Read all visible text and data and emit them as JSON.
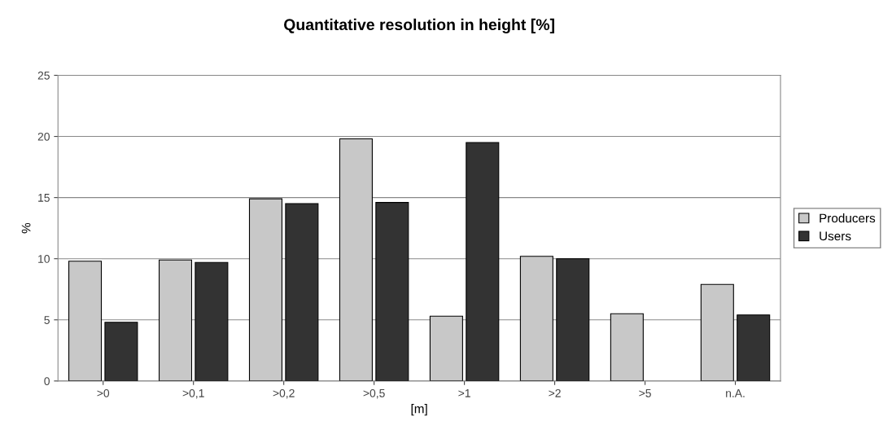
{
  "chart_data": {
    "type": "bar",
    "title": "Quantitative resolution in height [%]",
    "xlabel": "[m]",
    "ylabel": "%",
    "categories": [
      ">0",
      ">0,1",
      ">0,2",
      ">0,5",
      ">1",
      ">2",
      ">5",
      "n.A."
    ],
    "series": [
      {
        "name": "Producers",
        "color": "#c8c8c8",
        "values": [
          9.8,
          9.9,
          14.9,
          19.8,
          5.3,
          10.2,
          5.5,
          7.9
        ]
      },
      {
        "name": "Users",
        "color": "#333333",
        "values": [
          4.8,
          9.7,
          14.5,
          14.6,
          19.5,
          10.0,
          null,
          5.4
        ]
      }
    ],
    "ylim": [
      0,
      25
    ],
    "yticks": [
      0,
      5,
      10,
      15,
      20,
      25
    ],
    "grid": "y",
    "legend": "right"
  }
}
